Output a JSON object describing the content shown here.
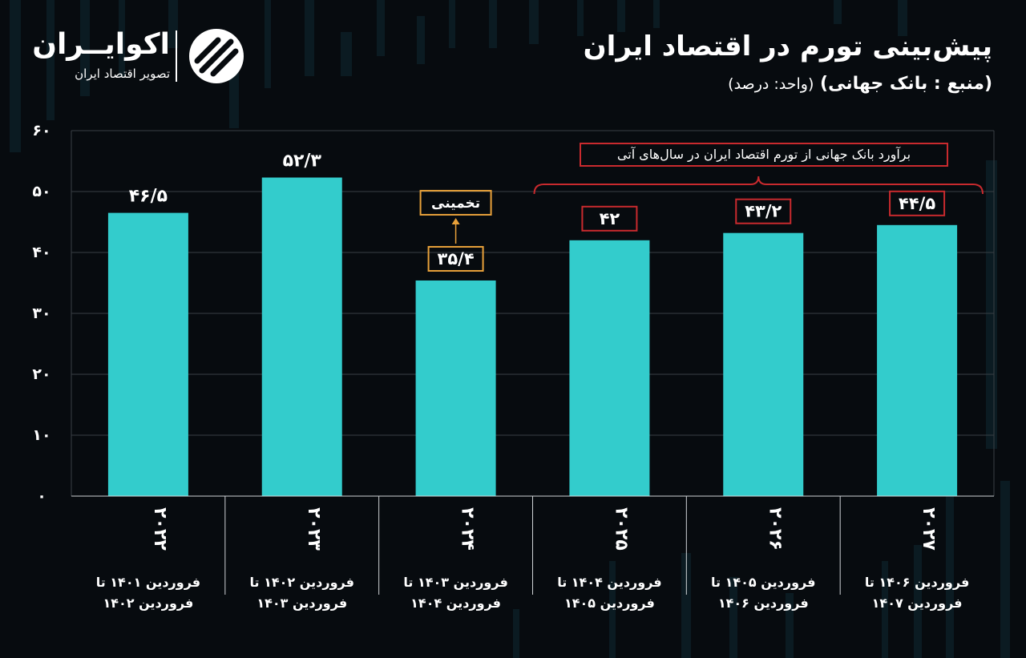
{
  "header": {
    "title": "پیش‌بینی تورم در اقتصاد ایران",
    "source": "(منبع : بانک جهانی)",
    "unit": "(واحد: درصد)"
  },
  "logo": {
    "name": "اکوایــران",
    "tagline": "تصویر اقتصاد ایران"
  },
  "annotation": {
    "bracket_label": "برآورد بانک جهانی از تورم اقتصاد ایران در سال‌های آتی",
    "estimate_label": "تخمینی"
  },
  "colors": {
    "background": "#070b0f",
    "bar": "#33cccc",
    "grid": "#3a3f44",
    "highlight_red": "#c92a2e",
    "highlight_orange": "#e8a13a"
  },
  "chart_data": {
    "type": "bar",
    "title": "پیش‌بینی تورم در اقتصاد ایران",
    "ylim": [
      0,
      60
    ],
    "yticks": [
      0,
      10,
      20,
      30,
      40,
      50,
      60
    ],
    "ytick_labels": [
      "۰",
      "۱۰",
      "۲۰",
      "۳۰",
      "۴۰",
      "۵۰",
      "۶۰"
    ],
    "grid": true,
    "categories": [
      "۲۰۲۲",
      "۲۰۲۳",
      "۲۰۲۴",
      "۲۰۲۵",
      "۲۰۲۶",
      "۲۰۲۷"
    ],
    "period_labels": [
      [
        "فروردین ۱۴۰۱ تا",
        "فروردین ۱۴۰۲"
      ],
      [
        "فروردین ۱۴۰۲ تا",
        "فروردین ۱۴۰۳"
      ],
      [
        "فروردین ۱۴۰۳ تا",
        "فروردین ۱۴۰۴"
      ],
      [
        "فروردین ۱۴۰۴ تا",
        "فروردین ۱۴۰۵"
      ],
      [
        "فروردین ۱۴۰۵ تا",
        "فروردین ۱۴۰۶"
      ],
      [
        "فروردین ۱۴۰۶ تا",
        "فروردین ۱۴۰۷"
      ]
    ],
    "values": [
      46.5,
      52.3,
      35.4,
      42,
      43.2,
      44.5
    ],
    "value_labels": [
      "۴۶/۵",
      "۵۲/۳",
      "۳۵/۴",
      "۴۲",
      "۴۳/۲",
      "۴۴/۵"
    ],
    "label_style": [
      "plain",
      "plain",
      "estimate",
      "forecast",
      "forecast",
      "forecast"
    ]
  }
}
